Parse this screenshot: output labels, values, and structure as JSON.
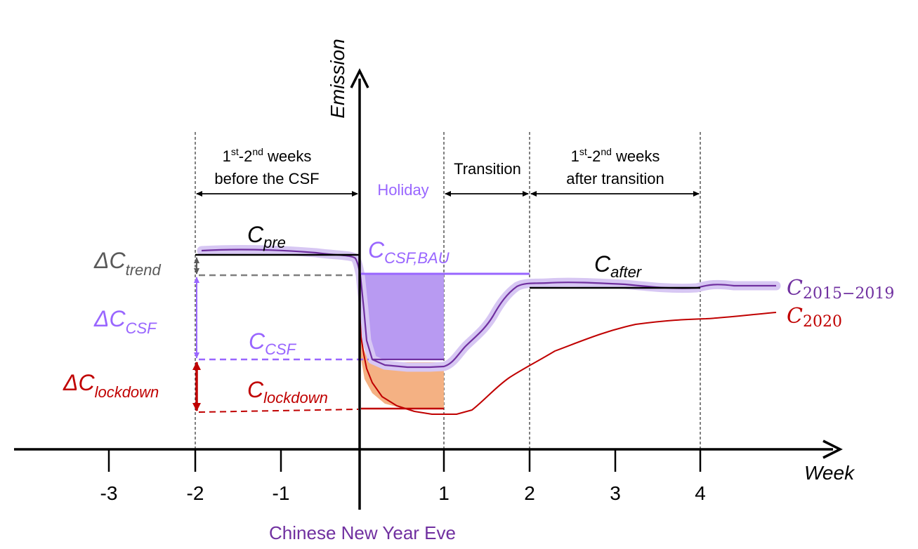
{
  "axes": {
    "y_label": "Emission",
    "x_label": "Week",
    "x_ticks": [
      "-3",
      "-2",
      "-1",
      "1",
      "2",
      "3",
      "4"
    ],
    "origin_label": "Chinese New Year Eve"
  },
  "periods": {
    "before": {
      "line1_a": "1",
      "line1_sup1": "st",
      "line1_b": "-2",
      "line1_sup2": "nd",
      "line1_c": " weeks",
      "line2": "before the CSF"
    },
    "holiday": "Holiday",
    "transition": "Transition",
    "after": {
      "line1_a": "1",
      "line1_sup1": "st",
      "line1_b": "-2",
      "line1_sup2": "nd",
      "line1_c": " weeks",
      "line2": "after transition"
    }
  },
  "labels": {
    "c_pre": {
      "base": "C",
      "sub": "pre"
    },
    "c_csf_bau": {
      "base": "C",
      "sub": "CSF,BAU"
    },
    "c_after": {
      "base": "C",
      "sub": "after"
    },
    "c_csf": {
      "base": "C",
      "sub": "CSF"
    },
    "c_lockdown": {
      "base": "C",
      "sub": "lockdown"
    },
    "delta_trend": {
      "base": "ΔC",
      "sub": "trend"
    },
    "delta_csf": {
      "base": "ΔC",
      "sub": "CSF"
    },
    "delta_lockdown": {
      "base": "ΔC",
      "sub": "lockdown"
    },
    "c_2015_2019": {
      "base": "C",
      "sub": "2015−2019"
    },
    "c_2020": {
      "base": "C",
      "sub": "2020"
    }
  },
  "colors": {
    "axis": "#000000",
    "purple_line": "#7030a0",
    "purple_band": "#d7c7f3",
    "purple_fill": "#b89af2",
    "purple_text": "#9966ff",
    "red_line": "#c00000",
    "orange_fill": "#f4b183",
    "gray": "#595959"
  }
}
